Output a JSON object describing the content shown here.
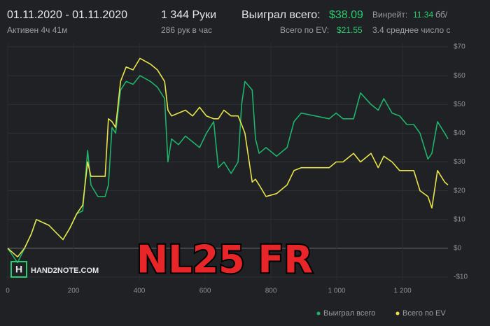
{
  "header": {
    "date_range": "01.11.2020 - 01.11.2020",
    "active": "Активен 4ч 41м",
    "hands": "1 344 Руки",
    "hands_per_hour": "286 рук в час",
    "won_label": "Выиграл всего:",
    "won_value": "$38.09",
    "ev_label": "Всего по EV:",
    "ev_value": "$21.55",
    "winrate_label": "Винрейт:",
    "winrate_value": "11.34",
    "winrate_unit": "бб/",
    "average": "3.4 среднее число с"
  },
  "chart_data": {
    "type": "line",
    "x": [
      0,
      30,
      51,
      72,
      87,
      125,
      168,
      189,
      210,
      228,
      243,
      253,
      274,
      296,
      306,
      317,
      328,
      343,
      360,
      381,
      402,
      434,
      455,
      477,
      487,
      498,
      519,
      540,
      562,
      583,
      604,
      626,
      640,
      657,
      679,
      700,
      711,
      721,
      743,
      753,
      764,
      785,
      817,
      849,
      870,
      892,
      934,
      977,
      998,
      1019,
      1051,
      1072,
      1104,
      1126,
      1143,
      1168,
      1191,
      1213,
      1234,
      1253,
      1277,
      1289,
      1306,
      1328,
      1338
    ],
    "series": [
      {
        "name": "Выиграл всего",
        "color": "#1fb36b",
        "values": [
          0,
          -5,
          0,
          5,
          10,
          8,
          3,
          7,
          12,
          13,
          34,
          22,
          18,
          18,
          22,
          42,
          40,
          55,
          58,
          57,
          60,
          58,
          56,
          52,
          30,
          38,
          36,
          39,
          37,
          35,
          40,
          44,
          28,
          30,
          26,
          30,
          50,
          58,
          55,
          38,
          33,
          35,
          32,
          35,
          44,
          47,
          46,
          45,
          47,
          45,
          45,
          54,
          50,
          48,
          52,
          47,
          46,
          43,
          43,
          40,
          31,
          33,
          44,
          40,
          38
        ]
      },
      {
        "name": "Всего по EV",
        "color": "#e8e34a",
        "values": [
          0,
          -3,
          0,
          5,
          10,
          8,
          3,
          7,
          12,
          15,
          30,
          25,
          25,
          25,
          45,
          44,
          42,
          58,
          63,
          62,
          66,
          64,
          62,
          58,
          48,
          46,
          47,
          48,
          46,
          49,
          46,
          45,
          45,
          48,
          46,
          46,
          43,
          40,
          23,
          24,
          22,
          18,
          19,
          22,
          27,
          28,
          28,
          28,
          30,
          30,
          33,
          30,
          33,
          28,
          32,
          30,
          27,
          27,
          27,
          20,
          18,
          14,
          27,
          23,
          22
        ]
      }
    ],
    "xlim": [
      0,
      1338
    ],
    "xticks": [
      0,
      200,
      400,
      600,
      800,
      {
        "value": 1000,
        "label": "1 000"
      },
      {
        "value": 1200,
        "label": "1 200"
      }
    ],
    "ylim": [
      -10,
      70
    ],
    "yticks": [
      {
        "value": 70,
        "label": "$70"
      },
      {
        "value": 60,
        "label": "$60"
      },
      {
        "value": 50,
        "label": "$50"
      },
      {
        "value": 40,
        "label": "$40"
      },
      {
        "value": 30,
        "label": "$30"
      },
      {
        "value": 20,
        "label": "$20"
      },
      {
        "value": 10,
        "label": "$10"
      },
      {
        "value": 0,
        "label": "$0"
      },
      {
        "value": -10,
        "label": "-$10"
      }
    ],
    "grid": true,
    "watermark": "HAND2NOTE.COM",
    "annotation": "NL25 FR"
  }
}
